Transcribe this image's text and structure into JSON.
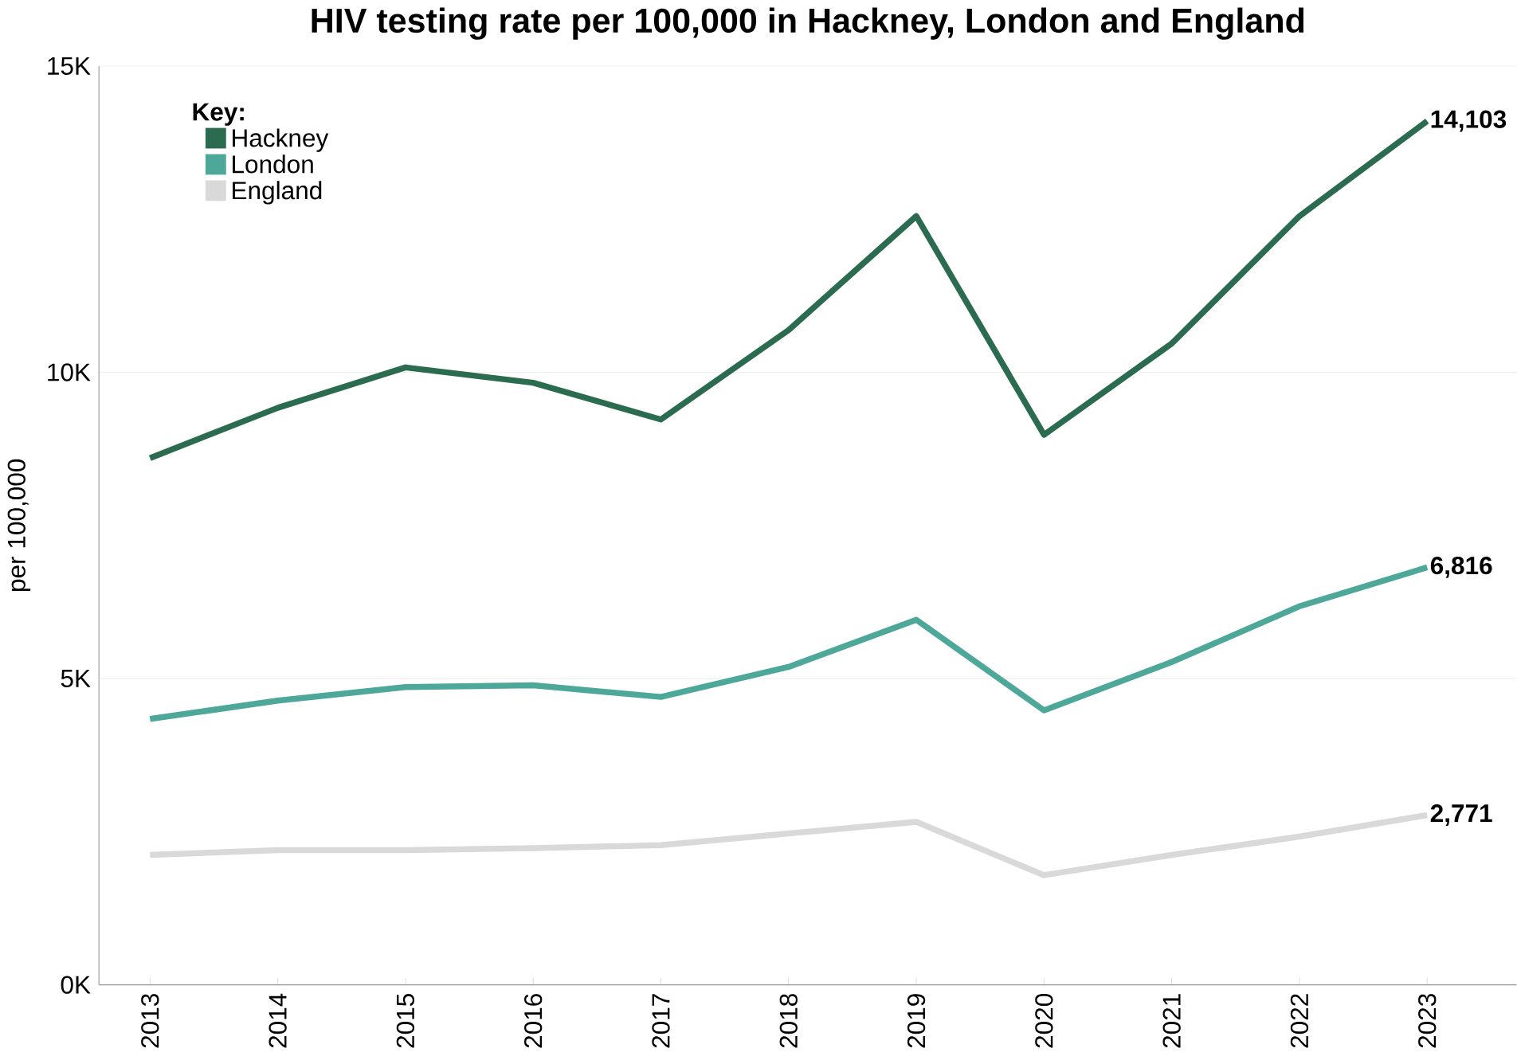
{
  "chart_data": {
    "type": "line",
    "title": "HIV testing rate per 100,000 in Hackney, London and England",
    "ylabel": "per 100,000",
    "legend_title": "Key:",
    "legend": "top left",
    "grid": "y",
    "line_style": "solid",
    "marker": "none",
    "categories": [
      "2013",
      "2014",
      "2015",
      "2016",
      "2017",
      "2018",
      "2019",
      "2020",
      "2021",
      "2022",
      "2023"
    ],
    "ylim": [
      0,
      15000
    ],
    "yticks": [
      {
        "value": 0,
        "label": "0K"
      },
      {
        "value": 5000,
        "label": "5K"
      },
      {
        "value": 10000,
        "label": "10K"
      },
      {
        "value": 15000,
        "label": "15K"
      }
    ],
    "series": [
      {
        "name": "Hackney",
        "color": "#2b6b4f",
        "values": [
          8600,
          9420,
          10080,
          9830,
          9230,
          10690,
          12550,
          8980,
          10470,
          12550,
          14103
        ],
        "value_labels": [
          null,
          null,
          null,
          null,
          null,
          null,
          null,
          null,
          null,
          null,
          "14,103"
        ]
      },
      {
        "name": "London",
        "color": "#4ea89a",
        "values": [
          4340,
          4640,
          4860,
          4890,
          4700,
          5190,
          5960,
          4480,
          5270,
          6180,
          6816
        ],
        "value_labels": [
          null,
          null,
          null,
          null,
          null,
          null,
          null,
          null,
          null,
          null,
          "6,816"
        ]
      },
      {
        "name": "England",
        "color": "#d9d9d9",
        "values": [
          2120,
          2200,
          2200,
          2230,
          2280,
          2470,
          2660,
          1790,
          2120,
          2420,
          2771
        ],
        "value_labels": [
          null,
          null,
          null,
          null,
          null,
          null,
          null,
          null,
          null,
          null,
          "2,771"
        ]
      }
    ]
  }
}
